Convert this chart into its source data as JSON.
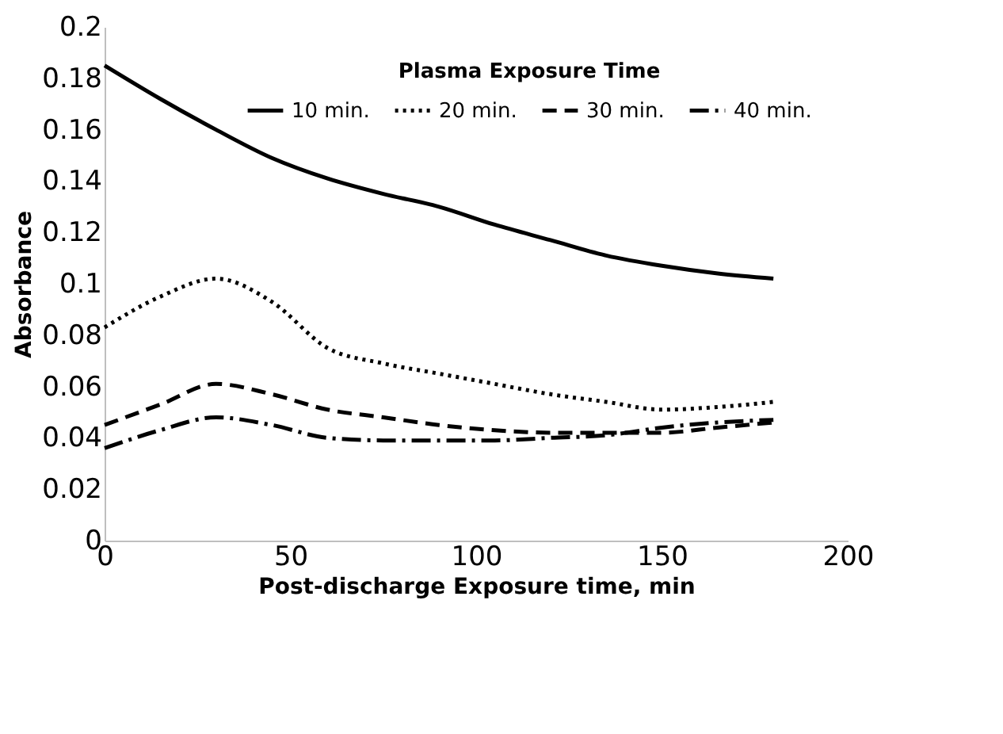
{
  "chart_data": {
    "type": "line",
    "xlabel": "Post-discharge Exposure time, min",
    "ylabel": "Absorbance",
    "legend_title": "Plasma Exposure Time",
    "legend": "top right",
    "grid": false,
    "marker": "none",
    "xlim": [
      0,
      200
    ],
    "xticks": [
      0,
      50,
      100,
      150,
      200
    ],
    "ylim": [
      0,
      0.2
    ],
    "yticks": [
      0,
      0.02,
      0.04,
      0.06,
      0.08,
      0.1,
      0.12,
      0.14,
      0.16,
      0.18,
      0.2
    ],
    "x": [
      0,
      15,
      30,
      45,
      60,
      75,
      90,
      105,
      120,
      135,
      150,
      165,
      180
    ],
    "series": [
      {
        "name": "10 min.",
        "color": "#000000",
        "line_style": "solid",
        "values": [
          0.185,
          0.172,
          0.16,
          0.149,
          0.141,
          0.135,
          0.13,
          0.123,
          0.117,
          0.111,
          0.107,
          0.104,
          0.102
        ]
      },
      {
        "name": "20 min.",
        "color": "#000000",
        "line_style": "dotted",
        "values": [
          0.083,
          0.095,
          0.102,
          0.093,
          0.075,
          0.069,
          0.065,
          0.061,
          0.057,
          0.054,
          0.051,
          0.052,
          0.054
        ]
      },
      {
        "name": "30 min.",
        "color": "#000000",
        "line_style": "dashed",
        "values": [
          0.045,
          0.053,
          0.061,
          0.057,
          0.051,
          0.048,
          0.045,
          0.043,
          0.042,
          0.042,
          0.042,
          0.044,
          0.046
        ]
      },
      {
        "name": "40 min.",
        "color": "#000000",
        "line_style": "dashdot",
        "values": [
          0.036,
          0.043,
          0.048,
          0.045,
          0.04,
          0.039,
          0.039,
          0.039,
          0.04,
          0.041,
          0.044,
          0.046,
          0.047
        ]
      }
    ]
  }
}
